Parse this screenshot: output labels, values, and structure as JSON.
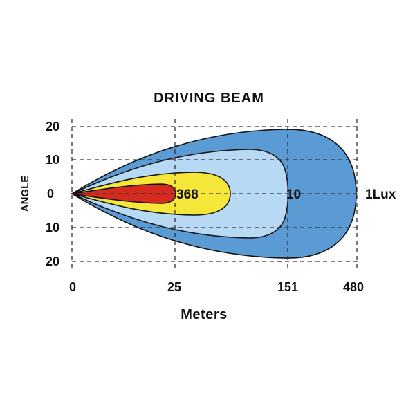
{
  "title": "DRIVING  BEAM",
  "y_axis": {
    "label": "ANGLE",
    "ticks": [
      "20",
      "10",
      "0",
      "10",
      "20"
    ]
  },
  "x_axis": {
    "label": "Meters",
    "ticks": [
      "0",
      "25",
      "151",
      "480"
    ]
  },
  "zones": [
    {
      "lux": "1Lux",
      "color": "#5b9bd5"
    },
    {
      "lux": "10",
      "color": "#b7d9f4"
    },
    {
      "lux": "",
      "color": "#f5e73a"
    },
    {
      "lux": "368",
      "color": "#d42a20"
    }
  ],
  "zone_labels": {
    "outer": "1Lux",
    "mid": "10",
    "inner": "368"
  }
}
